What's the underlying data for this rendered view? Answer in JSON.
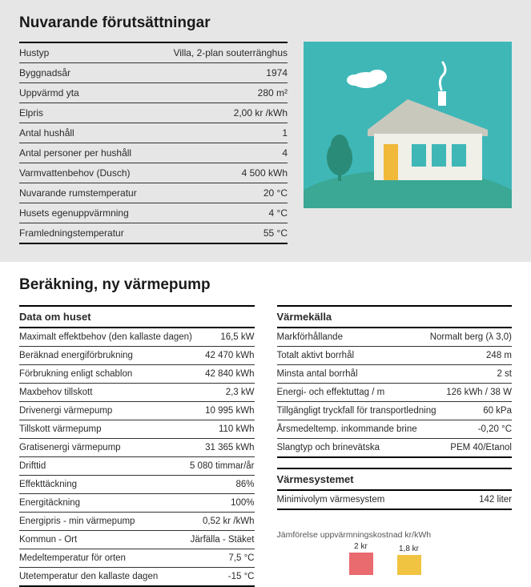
{
  "top": {
    "title": "Nuvarande förutsättningar",
    "rows": [
      {
        "label": "Hustyp",
        "value": "Villa, 2-plan souterränghus"
      },
      {
        "label": "Byggnadsår",
        "value": "1974"
      },
      {
        "label": "Uppvärmd yta",
        "value": "280 m²"
      },
      {
        "label": "Elpris",
        "value": "2,00 kr /kWh"
      },
      {
        "label": "Antal hushåll",
        "value": "1"
      },
      {
        "label": "Antal personer per hushåll",
        "value": "4"
      },
      {
        "label": "Varmvattenbehov (Dusch)",
        "value": "4 500 kWh"
      },
      {
        "label": "Nuvarande rumstemperatur",
        "value": "20 °C"
      },
      {
        "label": "Husets egenuppvärmning",
        "value": "4 °C"
      },
      {
        "label": "Framledningstemperatur",
        "value": "55 °C"
      }
    ],
    "illustration": {
      "sky_color": "#3fb7b7",
      "grass_color": "#3aa894",
      "tree_color": "#2a8c78",
      "cloud_color": "#ffffff",
      "house_wall": "#f0efe8",
      "house_roof": "#c9c8bd",
      "door_color": "#f0b93a",
      "window_color": "#3fb7b7",
      "smoke_color": "#ffffff",
      "chimney_color": "#ffffff"
    }
  },
  "bottom": {
    "title": "Beräkning, ny värmepump",
    "left": {
      "subhead": "Data om huset",
      "rows": [
        {
          "label": "Maximalt effektbehov (den kallaste dagen)",
          "value": "16,5 kW"
        },
        {
          "label": "Beräknad energiförbrukning",
          "value": "42 470 kWh"
        },
        {
          "label": "Förbrukning enligt schablon",
          "value": "42 840 kWh"
        },
        {
          "label": "Maxbehov tillskott",
          "value": "2,3 kW"
        },
        {
          "label": "Drivenergi värmepump",
          "value": "10 995 kWh"
        },
        {
          "label": "Tillskott värmepump",
          "value": "110 kWh"
        },
        {
          "label": "Gratisenergi värmepump",
          "value": "31 365 kWh"
        },
        {
          "label": "Drifttid",
          "value": "5 080 timmar/år"
        },
        {
          "label": "Effekttäckning",
          "value": "86%"
        },
        {
          "label": "Energitäckning",
          "value": "100%"
        },
        {
          "label": "Energipris - min värmepump",
          "value": "0,52 kr /kWh"
        },
        {
          "label": "Kommun - Ort",
          "value": "Järfälla - Stäket"
        },
        {
          "label": "Medeltemperatur för orten",
          "value": "7,5 °C"
        },
        {
          "label": "Utetemperatur den kallaste dagen",
          "value": "-15 °C"
        }
      ]
    },
    "right": {
      "subhead1": "Värmekälla",
      "rows1": [
        {
          "label": "Markförhållande",
          "value": "Normalt berg (λ 3,0)"
        },
        {
          "label": "Totalt aktivt borrhål",
          "value": "248 m"
        },
        {
          "label": "Minsta antal borrhål",
          "value": "2 st"
        },
        {
          "label": "Energi- och effektuttag / m",
          "value": "126 kWh / 38 W"
        },
        {
          "label": "Tillgängligt tryckfall för transportledning",
          "value": "60 kPa"
        },
        {
          "label": "Årsmedeltemp. inkommande brine",
          "value": "-0,20 °C"
        },
        {
          "label": "Slangtyp och brinevätska",
          "value": "PEM 40/Etanol"
        }
      ],
      "subhead2": "Värmesystemet",
      "rows2": [
        {
          "label": "Minimivolym värmesystem",
          "value": "142 liter"
        }
      ]
    },
    "chart": {
      "title": "Jämförelse uppvärmningskostnad kr/kWh",
      "bars": [
        {
          "label": "2 kr",
          "height": 28,
          "color": "#e96a6f"
        },
        {
          "label": "1,8 kr",
          "height": 25,
          "color": "#f0c341"
        }
      ]
    }
  }
}
